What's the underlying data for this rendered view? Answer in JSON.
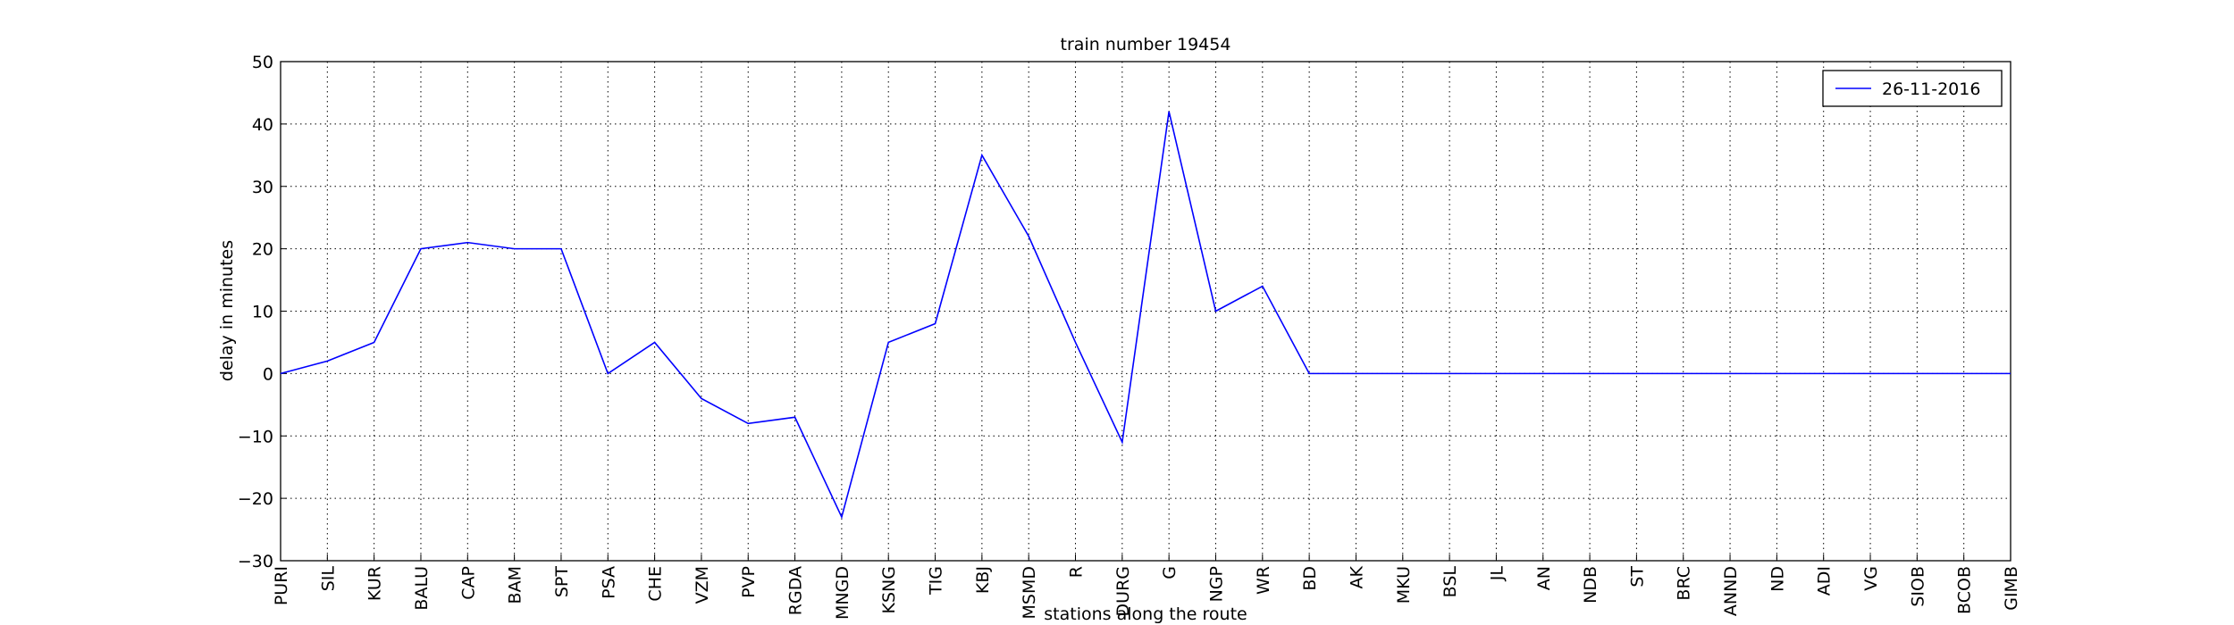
{
  "chart_data": {
    "type": "line",
    "title": "train number 19454",
    "xlabel": "stations along the route",
    "ylabel": "delay in minutes",
    "categories": [
      "PURI",
      "SIL",
      "KUR",
      "BALU",
      "CAP",
      "BAM",
      "SPT",
      "PSA",
      "CHE",
      "VZM",
      "PVP",
      "RGDA",
      "MNGD",
      "KSNG",
      "TIG",
      "KBJ",
      "MSMD",
      "R",
      "DURG",
      "G",
      "NGP",
      "WR",
      "BD",
      "AK",
      "MKU",
      "BSL",
      "JL",
      "AN",
      "NDB",
      "ST",
      "BRC",
      "ANND",
      "ND",
      "ADI",
      "VG",
      "SIOB",
      "BCOB",
      "GIMB"
    ],
    "series": [
      {
        "name": "26-11-2016",
        "color": "#0000ff",
        "values": [
          0,
          2,
          5,
          20,
          21,
          20,
          20,
          0,
          5,
          -4,
          -8,
          -7,
          -23,
          5,
          8,
          35,
          22,
          5,
          -11,
          42,
          10,
          14,
          0,
          0,
          0,
          0,
          0,
          0,
          0,
          0,
          0,
          0,
          0,
          0,
          0,
          0,
          0,
          0
        ]
      }
    ],
    "ylim": [
      -30,
      50
    ],
    "yticks": [
      {
        "value": -30,
        "label": "−30"
      },
      {
        "value": -20,
        "label": "−20"
      },
      {
        "value": -10,
        "label": "−10"
      },
      0,
      10,
      20,
      30,
      40,
      50
    ],
    "grid": true,
    "legend": "upper right"
  }
}
